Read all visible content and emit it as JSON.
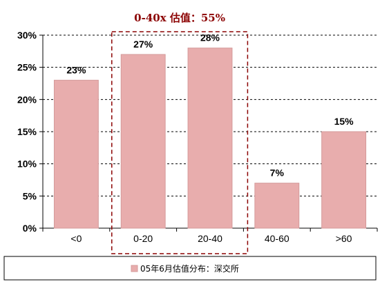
{
  "chart_data": {
    "type": "bar",
    "categories": [
      "<0",
      "0-20",
      "20-40",
      "40-60",
      ">60"
    ],
    "series": [
      {
        "name": "05年6月估值分布：深交所",
        "values": [
          23,
          27,
          28,
          7,
          15
        ],
        "data_labels": [
          "23%",
          "27%",
          "28%",
          "7%",
          "15%"
        ]
      }
    ],
    "y_ticks": [
      "0%",
      "5%",
      "10%",
      "15%",
      "20%",
      "25%",
      "30%"
    ],
    "ylim": [
      0,
      30
    ],
    "title": "",
    "xlabel": "",
    "ylabel": "",
    "grid": "horizontal dashed",
    "legend_position": "bottom",
    "annotation": {
      "text": "0-40x 估值：55%",
      "highlighted_categories": [
        "0-20",
        "20-40"
      ],
      "color": "#8b0000"
    },
    "colors": {
      "bar_fill": "#e8adad",
      "bar_stroke": "#d49a9a",
      "annotation": "#8b0000"
    }
  }
}
